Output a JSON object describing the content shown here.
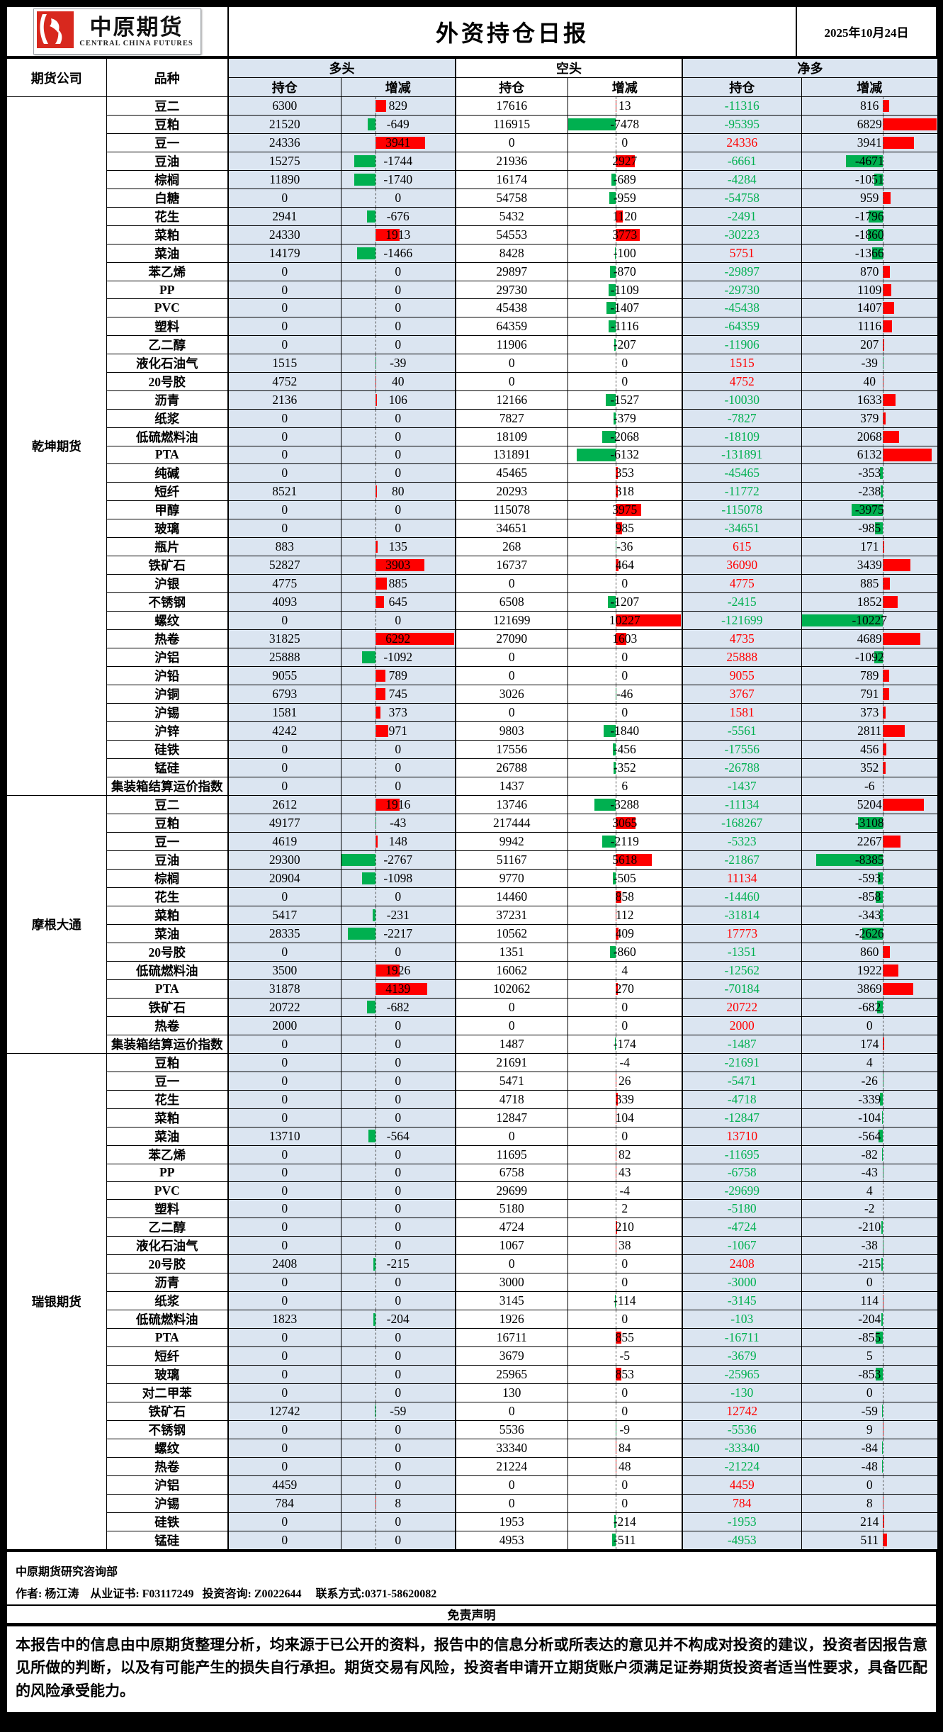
{
  "header": {
    "logo_cn": "中原期货",
    "logo_en": "CENTRAL CHINA FUTURES",
    "title": "外资持仓日报",
    "date": "2025年10月24日"
  },
  "table": {
    "col_company": "期货公司",
    "col_variety": "品种",
    "group_long": "多头",
    "group_short": "空头",
    "group_net": "净多",
    "sub_position": "持仓",
    "sub_change": "增减",
    "companies": [
      {
        "name": "乾坤期货",
        "rows": [
          [
            "豆二",
            6300,
            829,
            17616,
            13,
            -11316,
            816
          ],
          [
            "豆粕",
            21520,
            -649,
            116915,
            -7478,
            -95395,
            6829
          ],
          [
            "豆一",
            24336,
            3941,
            0,
            0,
            24336,
            3941
          ],
          [
            "豆油",
            15275,
            -1744,
            21936,
            2927,
            -6661,
            -4671
          ],
          [
            "棕榈",
            11890,
            -1740,
            16174,
            -689,
            -4284,
            -1051
          ],
          [
            "白糖",
            0,
            0,
            54758,
            -959,
            -54758,
            959
          ],
          [
            "花生",
            2941,
            -676,
            5432,
            1120,
            -2491,
            -1796
          ],
          [
            "菜粕",
            24330,
            1913,
            54553,
            3773,
            -30223,
            -1860
          ],
          [
            "菜油",
            14179,
            -1466,
            8428,
            -100,
            5751,
            -1366
          ],
          [
            "苯乙烯",
            0,
            0,
            29897,
            -870,
            -29897,
            870
          ],
          [
            "PP",
            0,
            0,
            29730,
            -1109,
            -29730,
            1109
          ],
          [
            "PVC",
            0,
            0,
            45438,
            -1407,
            -45438,
            1407
          ],
          [
            "塑料",
            0,
            0,
            64359,
            -1116,
            -64359,
            1116
          ],
          [
            "乙二醇",
            0,
            0,
            11906,
            -207,
            -11906,
            207
          ],
          [
            "液化石油气",
            1515,
            -39,
            0,
            0,
            1515,
            -39
          ],
          [
            "20号胶",
            4752,
            40,
            0,
            0,
            4752,
            40
          ],
          [
            "沥青",
            2136,
            106,
            12166,
            -1527,
            -10030,
            1633
          ],
          [
            "纸浆",
            0,
            0,
            7827,
            -379,
            -7827,
            379
          ],
          [
            "低硫燃料油",
            0,
            0,
            18109,
            -2068,
            -18109,
            2068
          ],
          [
            "PTA",
            0,
            0,
            131891,
            -6132,
            -131891,
            6132
          ],
          [
            "纯碱",
            0,
            0,
            45465,
            353,
            -45465,
            -353
          ],
          [
            "短纤",
            8521,
            80,
            20293,
            318,
            -11772,
            -238
          ],
          [
            "甲醇",
            0,
            0,
            115078,
            3975,
            -115078,
            -3975
          ],
          [
            "玻璃",
            0,
            0,
            34651,
            985,
            -34651,
            -985
          ],
          [
            "瓶片",
            883,
            135,
            268,
            -36,
            615,
            171
          ],
          [
            "铁矿石",
            52827,
            3903,
            16737,
            464,
            36090,
            3439
          ],
          [
            "沪银",
            4775,
            885,
            0,
            0,
            4775,
            885
          ],
          [
            "不锈钢",
            4093,
            645,
            6508,
            -1207,
            -2415,
            1852
          ],
          [
            "螺纹",
            0,
            0,
            121699,
            10227,
            -121699,
            -10227
          ],
          [
            "热卷",
            31825,
            6292,
            27090,
            1603,
            4735,
            4689
          ],
          [
            "沪铝",
            25888,
            -1092,
            0,
            0,
            25888,
            -1092
          ],
          [
            "沪铅",
            9055,
            789,
            0,
            0,
            9055,
            789
          ],
          [
            "沪铜",
            6793,
            745,
            3026,
            -46,
            3767,
            791
          ],
          [
            "沪锡",
            1581,
            373,
            0,
            0,
            1581,
            373
          ],
          [
            "沪锌",
            4242,
            971,
            9803,
            -1840,
            -5561,
            2811
          ],
          [
            "硅铁",
            0,
            0,
            17556,
            -456,
            -17556,
            456
          ],
          [
            "锰硅",
            0,
            0,
            26788,
            -352,
            -26788,
            352
          ],
          [
            "集装箱结算运价指数",
            0,
            0,
            1437,
            6,
            -1437,
            -6
          ]
        ]
      },
      {
        "name": "摩根大通",
        "rows": [
          [
            "豆二",
            2612,
            1916,
            13746,
            -3288,
            -11134,
            5204
          ],
          [
            "豆粕",
            49177,
            -43,
            217444,
            3065,
            -168267,
            -3108
          ],
          [
            "豆一",
            4619,
            148,
            9942,
            -2119,
            -5323,
            2267
          ],
          [
            "豆油",
            29300,
            -2767,
            51167,
            5618,
            -21867,
            -8385
          ],
          [
            "棕榈",
            20904,
            -1098,
            9770,
            -505,
            11134,
            -593
          ],
          [
            "花生",
            0,
            0,
            14460,
            858,
            -14460,
            -858
          ],
          [
            "菜粕",
            5417,
            -231,
            37231,
            112,
            -31814,
            -343
          ],
          [
            "菜油",
            28335,
            -2217,
            10562,
            409,
            17773,
            -2626
          ],
          [
            "20号胶",
            0,
            0,
            1351,
            -860,
            -1351,
            860
          ],
          [
            "低硫燃料油",
            3500,
            1926,
            16062,
            4,
            -12562,
            1922
          ],
          [
            "PTA",
            31878,
            4139,
            102062,
            270,
            -70184,
            3869
          ],
          [
            "铁矿石",
            20722,
            -682,
            0,
            0,
            20722,
            -682
          ],
          [
            "热卷",
            2000,
            0,
            0,
            0,
            2000,
            0
          ],
          [
            "集装箱结算运价指数",
            0,
            0,
            1487,
            -174,
            -1487,
            174
          ]
        ]
      },
      {
        "name": "瑞银期货",
        "rows": [
          [
            "豆粕",
            0,
            0,
            21691,
            -4,
            -21691,
            4
          ],
          [
            "豆一",
            0,
            0,
            5471,
            26,
            -5471,
            -26
          ],
          [
            "花生",
            0,
            0,
            4718,
            339,
            -4718,
            -339
          ],
          [
            "菜粕",
            0,
            0,
            12847,
            104,
            -12847,
            -104
          ],
          [
            "菜油",
            13710,
            -564,
            0,
            0,
            13710,
            -564
          ],
          [
            "苯乙烯",
            0,
            0,
            11695,
            82,
            -11695,
            -82
          ],
          [
            "PP",
            0,
            0,
            6758,
            43,
            -6758,
            -43
          ],
          [
            "PVC",
            0,
            0,
            29699,
            -4,
            -29699,
            4
          ],
          [
            "塑料",
            0,
            0,
            5180,
            2,
            -5180,
            -2
          ],
          [
            "乙二醇",
            0,
            0,
            4724,
            210,
            -4724,
            -210
          ],
          [
            "液化石油气",
            0,
            0,
            1067,
            38,
            -1067,
            -38
          ],
          [
            "20号胶",
            2408,
            -215,
            0,
            0,
            2408,
            -215
          ],
          [
            "沥青",
            0,
            0,
            3000,
            0,
            -3000,
            0
          ],
          [
            "纸浆",
            0,
            0,
            3145,
            -114,
            -3145,
            114
          ],
          [
            "低硫燃料油",
            1823,
            -204,
            1926,
            0,
            -103,
            -204
          ],
          [
            "PTA",
            0,
            0,
            16711,
            855,
            -16711,
            -855
          ],
          [
            "短纤",
            0,
            0,
            3679,
            -5,
            -3679,
            5
          ],
          [
            "玻璃",
            0,
            0,
            25965,
            853,
            -25965,
            -853
          ],
          [
            "对二甲苯",
            0,
            0,
            130,
            0,
            -130,
            0
          ],
          [
            "铁矿石",
            12742,
            -59,
            0,
            0,
            12742,
            -59
          ],
          [
            "不锈钢",
            0,
            0,
            5536,
            -9,
            -5536,
            9
          ],
          [
            "螺纹",
            0,
            0,
            33340,
            84,
            -33340,
            -84
          ],
          [
            "热卷",
            0,
            0,
            21224,
            48,
            -21224,
            -48
          ],
          [
            "沪铝",
            4459,
            0,
            0,
            0,
            4459,
            0
          ],
          [
            "沪锡",
            784,
            8,
            0,
            0,
            784,
            8
          ],
          [
            "硅铁",
            0,
            0,
            1953,
            -214,
            -1953,
            214
          ],
          [
            "锰硅",
            0,
            0,
            4953,
            -511,
            -4953,
            511
          ]
        ]
      }
    ]
  },
  "footer": {
    "department": "中原期货研究咨询部",
    "author_line": "作者: 杨江涛    从业证书: F03117249   投资咨询: Z0022644     联系方式:0371-58620082"
  },
  "disclaimer": {
    "title": "免责声明",
    "body": "本报告中的信息由中原期货整理分析，均来源于已公开的资料，报告中的信息分析或所表达的意见并不构成对投资的建议，投资者因报告意见所做的判断，以及有可能产生的损失自行承担。期货交易有风险，投资者申请开立期货账户须满足证券期货投资者适当性要求，具备匹配的风险承受能力。"
  },
  "colors": {
    "light_blue": "#dbe5f1",
    "pos_red": "#ff0000",
    "neg_green": "#00b050",
    "logo_red": "#d8281e"
  }
}
